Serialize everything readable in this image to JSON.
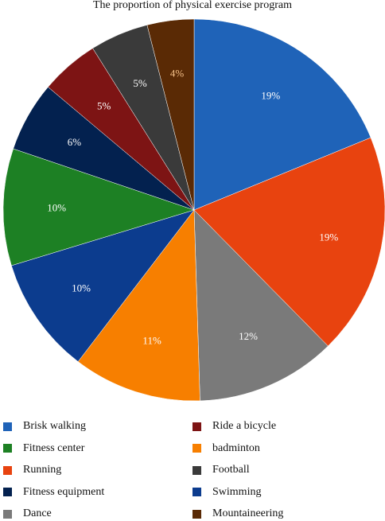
{
  "chart_data": {
    "type": "pie",
    "title": "The proportion of physical exercise program",
    "slices": [
      {
        "name": "Brisk walking",
        "value": 19,
        "label": "19%",
        "color": "#1f63b8",
        "label_color": "#ffffff"
      },
      {
        "name": "Running",
        "value": 19,
        "label": "19%",
        "color": "#e8430f",
        "label_color": "#ffffff"
      },
      {
        "name": "Dance",
        "value": 12,
        "label": "12%",
        "color": "#7a7a7a",
        "label_color": "#ffffff"
      },
      {
        "name": "badminton",
        "value": 11,
        "label": "11%",
        "color": "#f77f00",
        "label_color": "#ffffff"
      },
      {
        "name": "Swimming",
        "value": 10,
        "label": "10%",
        "color": "#0c3c8e",
        "label_color": "#ffffff"
      },
      {
        "name": "Fitness center",
        "value": 10,
        "label": "10%",
        "color": "#1d8024",
        "label_color": "#ffffff"
      },
      {
        "name": "Fitness equipment",
        "value": 6,
        "label": "6%",
        "color": "#03214f",
        "label_color": "#ffffff"
      },
      {
        "name": "Ride a bicycle",
        "value": 5,
        "label": "5%",
        "color": "#7d1414",
        "label_color": "#ffffff"
      },
      {
        "name": "Football",
        "value": 5,
        "label": "5%",
        "color": "#3a3a3a",
        "label_color": "#ffffff"
      },
      {
        "name": "Mountaineering",
        "value": 4,
        "label": "4%",
        "color": "#5a2a05",
        "label_color": "#f6c28a"
      }
    ],
    "legend": {
      "placement": "bottom",
      "columns": [
        [
          "Brisk walking",
          "Fitness center",
          "Running",
          "Fitness equipment",
          "Dance"
        ],
        [
          "Ride a bicycle",
          "badminton",
          "Football",
          "Swimming",
          "Mountaineering"
        ]
      ]
    }
  }
}
